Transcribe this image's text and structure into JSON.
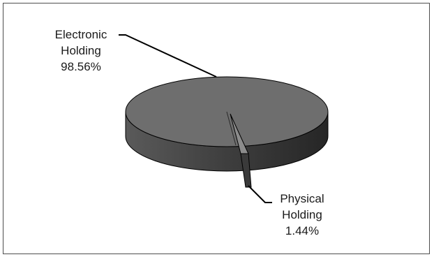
{
  "chart_data": {
    "type": "pie",
    "three_d": true,
    "categories": [
      "Electronic Holding",
      "Physical Holding"
    ],
    "values": [
      98.56,
      1.44
    ],
    "unit": "%",
    "labels": [
      {
        "line1": "Electronic",
        "line2": "Holding",
        "value": "98.56%"
      },
      {
        "line1": "Physical",
        "line2": "Holding",
        "value": "1.44%"
      }
    ],
    "title": "",
    "legend": "none",
    "colors": {
      "main_top": "#6e6e6e",
      "main_side": "#4a4a4a",
      "slice_top": "#8a8a8a",
      "slice_side": "#3c3c3c",
      "outline": "#000000"
    }
  }
}
